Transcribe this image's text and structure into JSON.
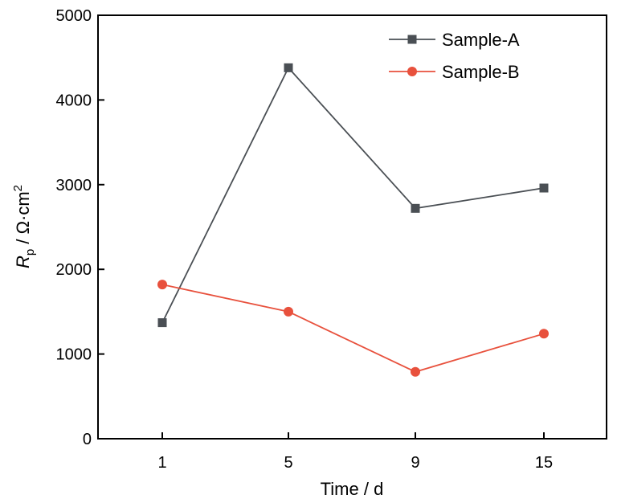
{
  "chart_data": {
    "type": "line",
    "categories": [
      "1",
      "5",
      "9",
      "15"
    ],
    "series": [
      {
        "name": "Sample-A",
        "values": [
          1370,
          4380,
          2720,
          2960
        ],
        "color": "#4a4f54",
        "marker": "square"
      },
      {
        "name": "Sample-B",
        "values": [
          1820,
          1500,
          790,
          1240
        ],
        "color": "#e8513d",
        "marker": "circle"
      }
    ],
    "xlabel": "Time / d",
    "ylabel": {
      "symbol": "R",
      "subscript": "p",
      "unit_prefix": " / Ω·cm",
      "unit_power": "2"
    },
    "ylim": [
      0,
      5000
    ],
    "yticks": [
      "0",
      "1000",
      "2000",
      "3000",
      "4000",
      "5000"
    ],
    "grid": false,
    "legend_position": "top-right"
  }
}
